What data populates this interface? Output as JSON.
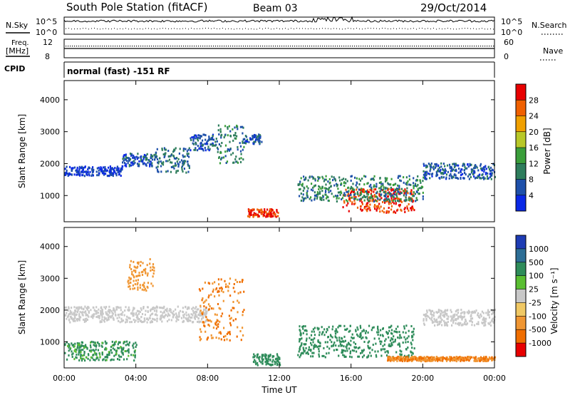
{
  "header": {
    "station_title": "South Pole Station (fitACF)",
    "beam": "Beam 03",
    "date": "29/Oct/2014"
  },
  "control_panels": {
    "nsky_label": "N.Sky",
    "nsearch_label": "N.Search",
    "nsky_ticks": [
      "10^5",
      "10^0"
    ],
    "nsearch_ticks": [
      "10^5",
      "10^0"
    ],
    "freq_label_1": "Freq.",
    "freq_label_2": "[MHz]",
    "freq_ticks": [
      "12",
      "8"
    ],
    "nave_label": "Nave",
    "nave_ticks": [
      "60",
      "0"
    ],
    "cpid_label": "CPID",
    "cpid_text": "normal (fast) -151 RF"
  },
  "chart_data": [
    {
      "type": "heatmap",
      "panel": "power",
      "ylabel": "Slant Range [km]",
      "ylim": [
        180,
        4600
      ],
      "yticks": [
        1000,
        2000,
        3000,
        4000
      ],
      "xlim": [
        0,
        24
      ],
      "xticks": [
        0,
        4,
        8,
        12,
        16,
        20,
        24
      ],
      "xtick_labels": [
        "00:00",
        "04:00",
        "08:00",
        "12:00",
        "16:00",
        "20:00",
        "00:00"
      ],
      "colorbar": {
        "label": "Power [dB]",
        "ticks": [
          "4",
          "8",
          "12",
          "16",
          "20",
          "24",
          "28"
        ],
        "colors": [
          "#0a28e6",
          "#1e50aa",
          "#2e7d5c",
          "#3a9e3a",
          "#b8c828",
          "#f0a000",
          "#f06000",
          "#e80000"
        ]
      },
      "features": [
        {
          "t0": 0,
          "t1": 3.2,
          "range": [
            1600,
            1900
          ],
          "value": 4
        },
        {
          "t0": 3.2,
          "t1": 5,
          "range": [
            1900,
            2300
          ],
          "value": 6
        },
        {
          "t0": 5,
          "t1": 7,
          "range": [
            1700,
            2500
          ],
          "value": 8
        },
        {
          "t0": 7,
          "t1": 8.5,
          "range": [
            2400,
            2900
          ],
          "value": 6
        },
        {
          "t0": 8.5,
          "t1": 10,
          "range": [
            2000,
            3200
          ],
          "value": 10
        },
        {
          "t0": 10,
          "t1": 11,
          "range": [
            2600,
            2900
          ],
          "value": 6
        },
        {
          "t0": 10.2,
          "t1": 11.9,
          "range": [
            320,
            560
          ],
          "value": 28
        },
        {
          "t0": 15.5,
          "t1": 19.5,
          "range": [
            450,
            1200
          ],
          "value": 28
        },
        {
          "t0": 13,
          "t1": 20,
          "range": [
            800,
            1600
          ],
          "value": 10
        },
        {
          "t0": 20,
          "t1": 24,
          "range": [
            1500,
            2000
          ],
          "value": 6
        }
      ]
    },
    {
      "type": "heatmap",
      "panel": "velocity",
      "ylabel": "Slant Range [km]",
      "ylim": [
        180,
        4600
      ],
      "yticks": [
        1000,
        2000,
        3000,
        4000
      ],
      "xlim": [
        0,
        24
      ],
      "xticks": [
        0,
        4,
        8,
        12,
        16,
        20,
        24
      ],
      "xtick_labels": [
        "00:00",
        "04:00",
        "08:00",
        "12:00",
        "16:00",
        "20:00",
        "00:00"
      ],
      "xlabel": "Time UT",
      "colorbar": {
        "label": "Velocity [m s⁻¹]",
        "ticks": [
          "1000",
          "500",
          "100",
          "25",
          "-25",
          "-100",
          "-500",
          "-1000"
        ],
        "colors": [
          "#1e3cb4",
          "#2d6e96",
          "#2e8c5a",
          "#5abe32",
          "#c8c8c8",
          "#f0c864",
          "#f09632",
          "#f06e00",
          "#e80000"
        ]
      },
      "features": [
        {
          "t0": 0,
          "t1": 8,
          "range": [
            1600,
            2100
          ],
          "value": 0
        },
        {
          "t0": 3.5,
          "t1": 5,
          "range": [
            2600,
            3600
          ],
          "value": -300
        },
        {
          "t0": 7.5,
          "t1": 10,
          "range": [
            1000,
            3000
          ],
          "value": -500
        },
        {
          "t0": 0,
          "t1": 4,
          "range": [
            400,
            1000
          ],
          "value": 120
        },
        {
          "t0": 10.5,
          "t1": 12,
          "range": [
            250,
            600
          ],
          "value": 150
        },
        {
          "t0": 13,
          "t1": 19.5,
          "range": [
            500,
            1500
          ],
          "value": 300
        },
        {
          "t0": 18,
          "t1": 24,
          "range": [
            380,
            520
          ],
          "value": -500
        },
        {
          "t0": 20,
          "t1": 24,
          "range": [
            1500,
            2000
          ],
          "value": 0
        }
      ]
    }
  ]
}
